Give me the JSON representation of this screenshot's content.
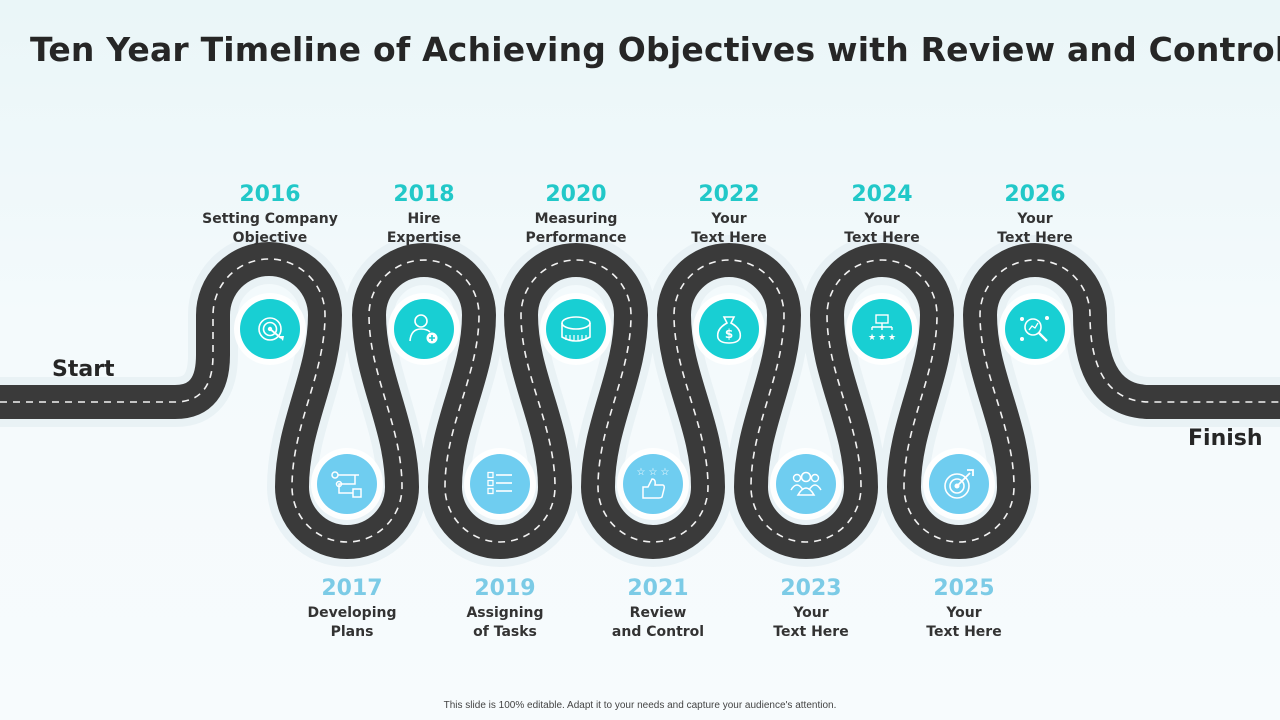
{
  "title": "Ten Year Timeline of Achieving Objectives with Review and Control",
  "start_label": "Start",
  "finish_label": "Finish",
  "footer": "This slide is 100% editable. Adapt it to your needs and capture your audience's attention.",
  "colors": {
    "road": "#3a3a3a",
    "top_circle": "#18cfd3",
    "bottom_circle": "#6fcdf0",
    "top_year": "#22c8c8",
    "bottom_year": "#7ccbe6"
  },
  "milestones": [
    {
      "year": "2016",
      "line1": "Setting Company",
      "line2": "Objective",
      "icon": "target-icon"
    },
    {
      "year": "2017",
      "line1": "Developing",
      "line2": "Plans",
      "icon": "flowchart-icon"
    },
    {
      "year": "2018",
      "line1": "Hire",
      "line2": "Expertise",
      "icon": "add-person-icon"
    },
    {
      "year": "2019",
      "line1": "Assigning",
      "line2": "of Tasks",
      "icon": "checklist-icon"
    },
    {
      "year": "2020",
      "line1": "Measuring",
      "line2": "Performance",
      "icon": "measuring-tape-icon"
    },
    {
      "year": "2021",
      "line1": "Review",
      "line2": "and Control",
      "icon": "thumbs-up-stars-icon"
    },
    {
      "year": "2022",
      "line1": "Your",
      "line2": "Text Here",
      "icon": "money-bag-icon"
    },
    {
      "year": "2023",
      "line1": "Your",
      "line2": "Text Here",
      "icon": "team-icon"
    },
    {
      "year": "2024",
      "line1": "Your",
      "line2": "Text Here",
      "icon": "org-rating-icon"
    },
    {
      "year": "2025",
      "line1": "Your",
      "line2": "Text Here",
      "icon": "goal-target-icon"
    },
    {
      "year": "2026",
      "line1": "Your",
      "line2": "Text Here",
      "icon": "search-analysis-icon"
    }
  ]
}
